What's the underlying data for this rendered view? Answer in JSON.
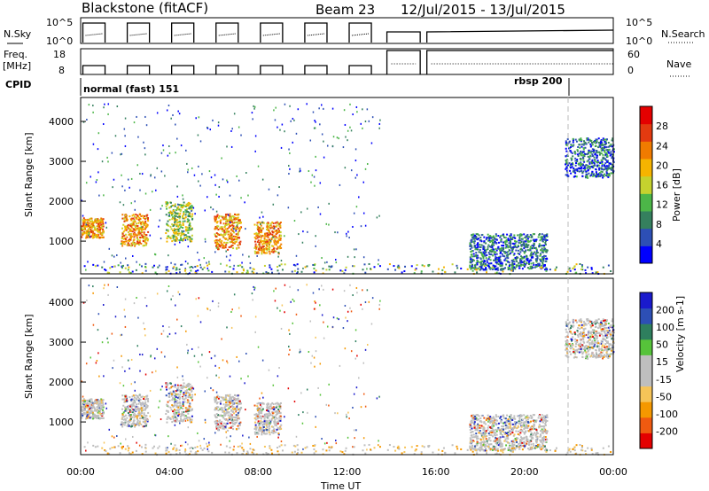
{
  "header": {
    "station": "Blackstone (fitACF)",
    "beam": "Beam 23",
    "date_range": "12/Jul/2015 - 13/Jul/2015"
  },
  "nsky_panel": {
    "left_label": "N.Sky",
    "ytick_top": "10^5",
    "ytick_bottom": "10^0",
    "right_label": "N.Search",
    "right_ytick_top": "10^5",
    "right_ytick_bottom": "10^0"
  },
  "freq_panel": {
    "left_label_line1": "Freq.",
    "left_label_line2": "[MHz]",
    "ytick_top": "18",
    "ytick_bottom": "8",
    "right_label": "Nave",
    "right_ytick_top": "60",
    "right_ytick_bottom": "0"
  },
  "cpid_panel": {
    "label": "CPID",
    "mode1": "normal (fast) 151",
    "mode2": "rbsp 200"
  },
  "x_axis": {
    "label": "Time UT",
    "ticks": [
      "00:00",
      "04:00",
      "08:00",
      "12:00",
      "16:00",
      "20:00",
      "00:00"
    ]
  },
  "colors": {
    "power_scale": [
      "#0000ff",
      "#2d4fb5",
      "#35805e",
      "#4cb648",
      "#c5d22e",
      "#f6b400",
      "#f07b00",
      "#e33a10",
      "#e40000"
    ],
    "velocity_scale": [
      "#e40000",
      "#f05a10",
      "#f59800",
      "#f6c458",
      "#bebebe",
      "#bebebe",
      "#56c33a",
      "#2e7f5e",
      "#2d4fb5",
      "#1a1acc"
    ]
  },
  "chart_data": [
    {
      "type": "heatmap",
      "title": "",
      "xlabel": "",
      "ylabel": "Slant Range [km]",
      "ylim": [
        180,
        4600
      ],
      "xlim_hours": [
        0,
        24
      ],
      "yticks": [
        "1000",
        "2000",
        "3000",
        "4000"
      ],
      "colorbar": {
        "label": "Power [dB]",
        "ticks": [
          "4",
          "8",
          "12",
          "16",
          "20",
          "24",
          "28"
        ],
        "range": [
          0,
          30
        ]
      },
      "scatter_regions": [
        {
          "x": [
            0.0,
            1.0
          ],
          "y": [
            1100,
            1600
          ],
          "level": "high"
        },
        {
          "x": [
            1.8,
            3.0
          ],
          "y": [
            900,
            1700
          ],
          "level": "high"
        },
        {
          "x": [
            3.8,
            5.0
          ],
          "y": [
            1000,
            2000
          ],
          "level": "mid"
        },
        {
          "x": [
            6.0,
            7.2
          ],
          "y": [
            800,
            1700
          ],
          "level": "high"
        },
        {
          "x": [
            7.8,
            9.0
          ],
          "y": [
            700,
            1500
          ],
          "level": "high"
        },
        {
          "x": [
            17.5,
            21.0
          ],
          "y": [
            300,
            1200
          ],
          "level": "low"
        },
        {
          "x": [
            21.8,
            24.0
          ],
          "y": [
            2600,
            3600
          ],
          "level": "low"
        }
      ]
    },
    {
      "type": "heatmap",
      "title": "",
      "xlabel": "Time UT",
      "ylabel": "Slant Range [km]",
      "ylim": [
        180,
        4600
      ],
      "xlim_hours": [
        0,
        24
      ],
      "yticks": [
        "1000",
        "2000",
        "3000",
        "4000"
      ],
      "colorbar": {
        "label": "Velocity [m s-1]",
        "ticks": [
          "-200",
          "-100",
          "-50",
          "-15",
          "15",
          "50",
          "100",
          "200"
        ],
        "range": [
          -250,
          250
        ]
      }
    }
  ]
}
